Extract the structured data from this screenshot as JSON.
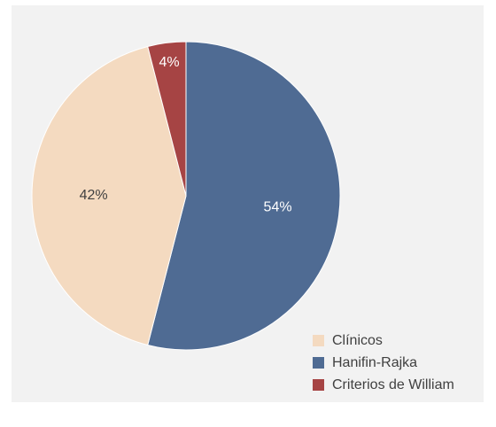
{
  "chart_data": {
    "type": "pie",
    "categories": [
      "Hanifin-Rajka",
      "Clínicos",
      "Criterios de William"
    ],
    "values": [
      54,
      42,
      4
    ],
    "data_labels": [
      "54%",
      "42%",
      "4%"
    ],
    "colors": [
      "#4f6b93",
      "#f4dac0",
      "#a64444"
    ],
    "label_colors": [
      "#ffffff",
      "#404040",
      "#ffffff"
    ],
    "start_angle_deg": 0,
    "direction": "clockwise",
    "legend": {
      "position": "bottom-right",
      "entries": [
        {
          "label": "Clínicos",
          "color": "#f4dac0"
        },
        {
          "label": "Hanifin-Rajka",
          "color": "#4f6b93"
        },
        {
          "label": "Criterios de William",
          "color": "#a64444"
        }
      ]
    }
  }
}
